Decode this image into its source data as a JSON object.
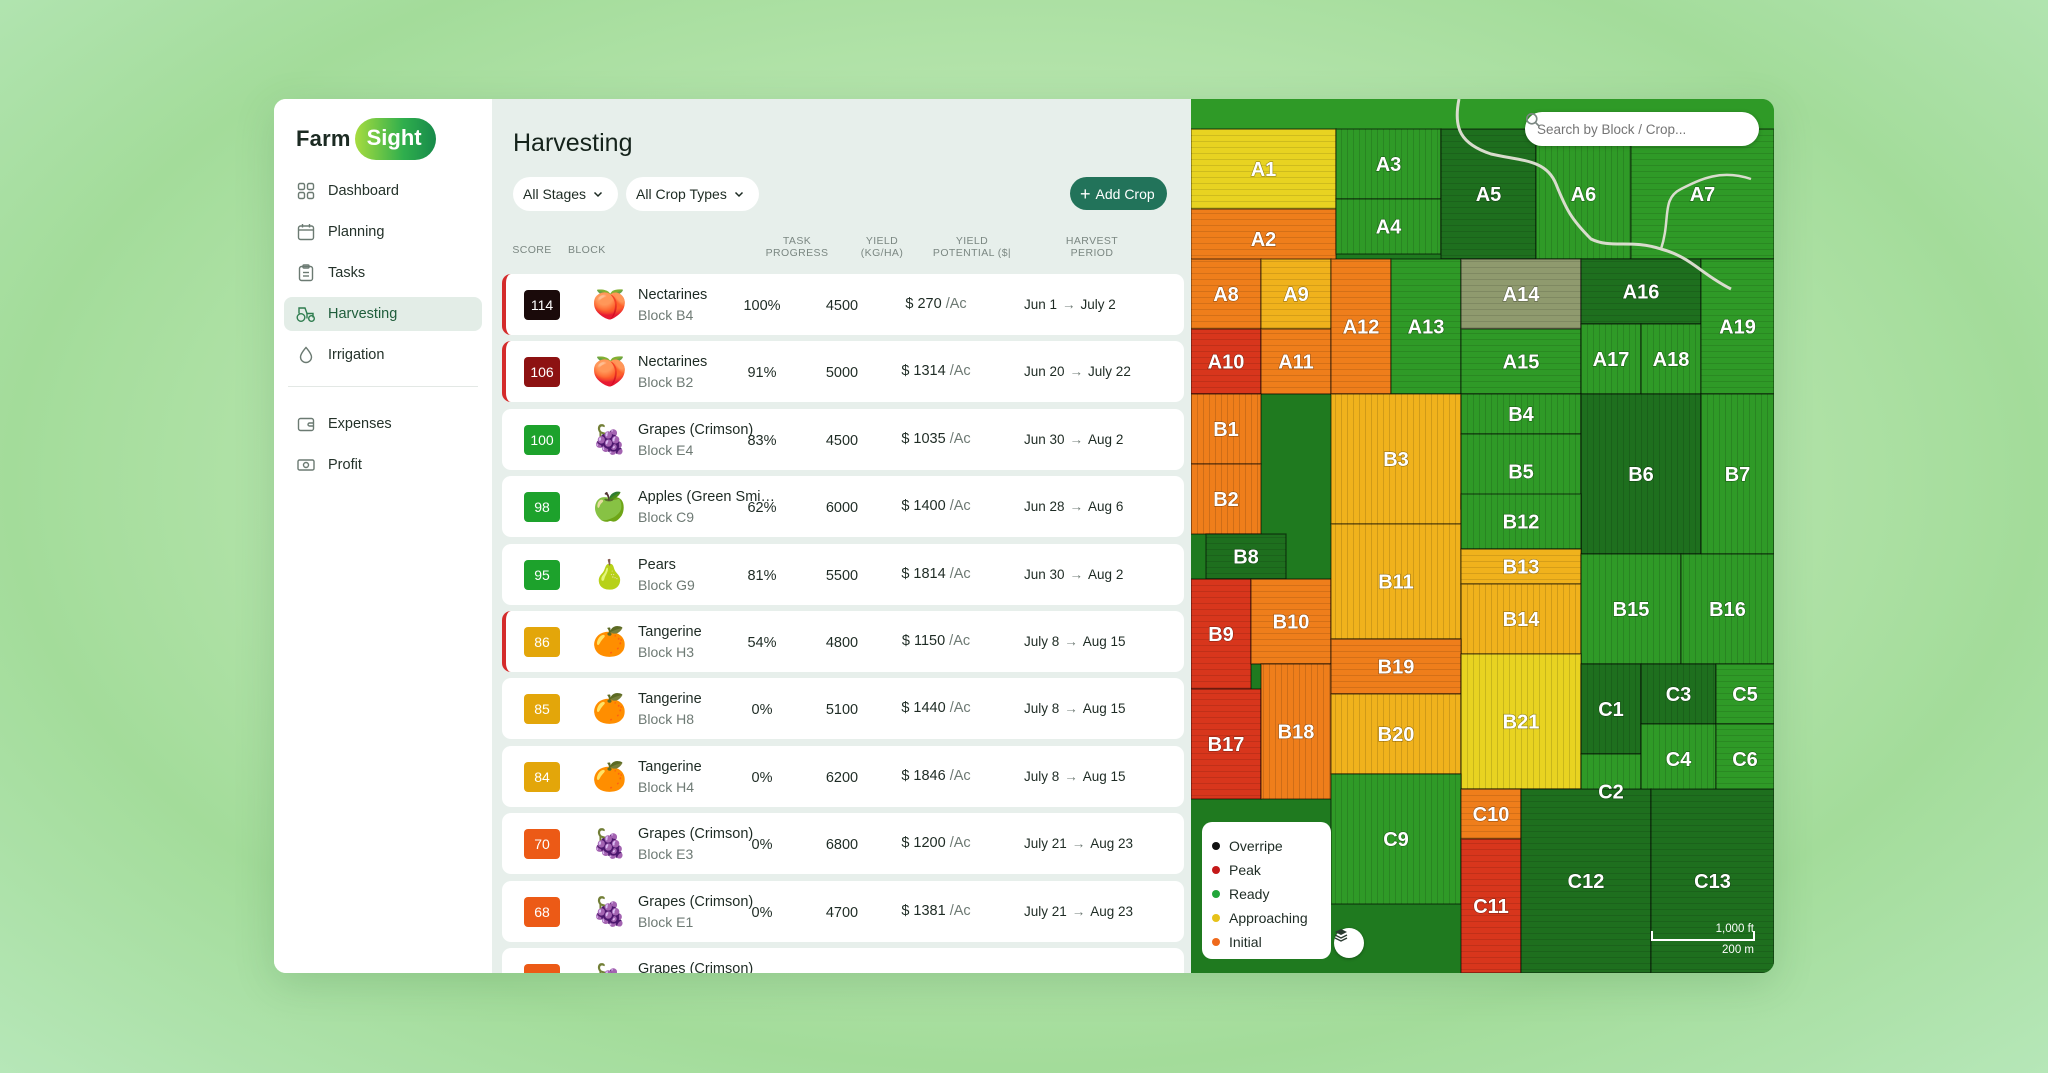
{
  "brand": {
    "farm": "Farm",
    "sight": "Sight"
  },
  "sidebar": {
    "items": [
      {
        "label": "Dashboard",
        "icon": "dashboard-icon"
      },
      {
        "label": "Planning",
        "icon": "calendar-icon"
      },
      {
        "label": "Tasks",
        "icon": "clipboard-icon"
      },
      {
        "label": "Harvesting",
        "icon": "tractor-icon",
        "active": true
      },
      {
        "label": "Irrigation",
        "icon": "water-drop-icon"
      }
    ],
    "items2": [
      {
        "label": "Expenses",
        "icon": "wallet-icon"
      },
      {
        "label": "Profit",
        "icon": "banknote-icon"
      }
    ]
  },
  "main": {
    "title": "Harvesting",
    "filter_stages": "All Stages",
    "filter_crops": "All Crop Types",
    "add_crop": "Add Crop",
    "columns": {
      "score": "SCORE",
      "block": "BLOCK",
      "task_progress_1": "TASK",
      "task_progress_2": "PROGRESS",
      "yield_1": "YIELD",
      "yield_2": "(KG/HA)",
      "potential_1": "YIELD",
      "potential_2": "POTENTIAL ($|",
      "period_1": "HARVEST",
      "period_2": "PERIOD"
    },
    "rows": [
      {
        "score": "114",
        "score_color": "#1a0a0a",
        "fruit": "🍑",
        "crop": "Nectarines",
        "block": "Block B4",
        "progress": "100%",
        "yield": "4500",
        "potential": "$ 270",
        "ac": "/Ac",
        "start": "Jun 1",
        "end": "July 2",
        "alert": true
      },
      {
        "score": "106",
        "score_color": "#8d1212",
        "fruit": "🍑",
        "crop": "Nectarines",
        "block": "Block B2",
        "progress": "91%",
        "yield": "5000",
        "potential": "$ 1314",
        "ac": "/Ac",
        "start": "Jun 20",
        "end": "July 22",
        "alert": true
      },
      {
        "score": "100",
        "score_color": "#1da22c",
        "fruit": "🍇",
        "crop": "Grapes (Crimson)",
        "block": "Block E4",
        "progress": "83%",
        "yield": "4500",
        "potential": "$ 1035",
        "ac": "/Ac",
        "start": "Jun 30",
        "end": "Aug 2",
        "alert": false
      },
      {
        "score": "98",
        "score_color": "#1da22c",
        "fruit": "🍏",
        "crop": "Apples (Green Smith)",
        "block": "Block C9",
        "progress": "62%",
        "yield": "6000",
        "potential": "$ 1400",
        "ac": "/Ac",
        "start": "Jun 28",
        "end": "Aug 6",
        "alert": false
      },
      {
        "score": "95",
        "score_color": "#1da22c",
        "fruit": "🍐",
        "crop": "Pears",
        "block": "Block G9",
        "progress": "81%",
        "yield": "5500",
        "potential": "$ 1814",
        "ac": "/Ac",
        "start": "Jun 30",
        "end": "Aug 2",
        "alert": false
      },
      {
        "score": "86",
        "score_color": "#e3a60a",
        "fruit": "🍊",
        "crop": "Tangerine",
        "block": "Block H3",
        "progress": "54%",
        "yield": "4800",
        "potential": "$ 1150",
        "ac": "/Ac",
        "start": "July 8",
        "end": "Aug 15",
        "alert": true
      },
      {
        "score": "85",
        "score_color": "#e3a60a",
        "fruit": "🍊",
        "crop": "Tangerine",
        "block": "Block H8",
        "progress": "0%",
        "yield": "5100",
        "potential": "$ 1440",
        "ac": "/Ac",
        "start": "July 8",
        "end": "Aug 15",
        "alert": false
      },
      {
        "score": "84",
        "score_color": "#e3a60a",
        "fruit": "🍊",
        "crop": "Tangerine",
        "block": "Block H4",
        "progress": "0%",
        "yield": "6200",
        "potential": "$ 1846",
        "ac": "/Ac",
        "start": "July 8",
        "end": "Aug 15",
        "alert": false
      },
      {
        "score": "70",
        "score_color": "#ec5a16",
        "fruit": "🍇",
        "crop": "Grapes (Crimson)",
        "block": "Block E3",
        "progress": "0%",
        "yield": "6800",
        "potential": "$ 1200",
        "ac": "/Ac",
        "start": "July 21",
        "end": "Aug 23",
        "alert": false
      },
      {
        "score": "68",
        "score_color": "#ec5a16",
        "fruit": "🍇",
        "crop": "Grapes (Crimson)",
        "block": "Block E1",
        "progress": "0%",
        "yield": "4700",
        "potential": "$ 1381",
        "ac": "/Ac",
        "start": "July 21",
        "end": "Aug 23",
        "alert": false
      },
      {
        "score": "",
        "score_color": "#ec5a16",
        "fruit": "🍇",
        "crop": "Grapes (Crimson)",
        "block": "",
        "progress": "",
        "yield": "",
        "potential": "",
        "ac": "",
        "start": "",
        "end": "",
        "alert": false
      }
    ]
  },
  "map": {
    "search_placeholder": "Search by Block / Crop...",
    "legend": [
      {
        "label": "Overripe",
        "color": "#111111"
      },
      {
        "label": "Peak",
        "color": "#c41818"
      },
      {
        "label": "Ready",
        "color": "#22a63a"
      },
      {
        "label": "Approaching",
        "color": "#e6c21a"
      },
      {
        "label": "Initial",
        "color": "#ef6a1c"
      }
    ],
    "scale_ft": "1,000 ft",
    "scale_m": "200 m",
    "blocks": [
      "A1",
      "A2",
      "A3",
      "A4",
      "A5",
      "A6",
      "A7",
      "A8",
      "A9",
      "A10",
      "A11",
      "A12",
      "A13",
      "A14",
      "A15",
      "A16",
      "A17",
      "A18",
      "A19",
      "B1",
      "B2",
      "B3",
      "B4",
      "B5",
      "B6",
      "B7",
      "B8",
      "B9",
      "B10",
      "B11",
      "B12",
      "B13",
      "B14",
      "B15",
      "B16",
      "B17",
      "B18",
      "B19",
      "B20",
      "B21",
      "C1",
      "C2",
      "C3",
      "C4",
      "C5",
      "C6",
      "C9",
      "C10",
      "C11",
      "C12",
      "C13"
    ]
  }
}
